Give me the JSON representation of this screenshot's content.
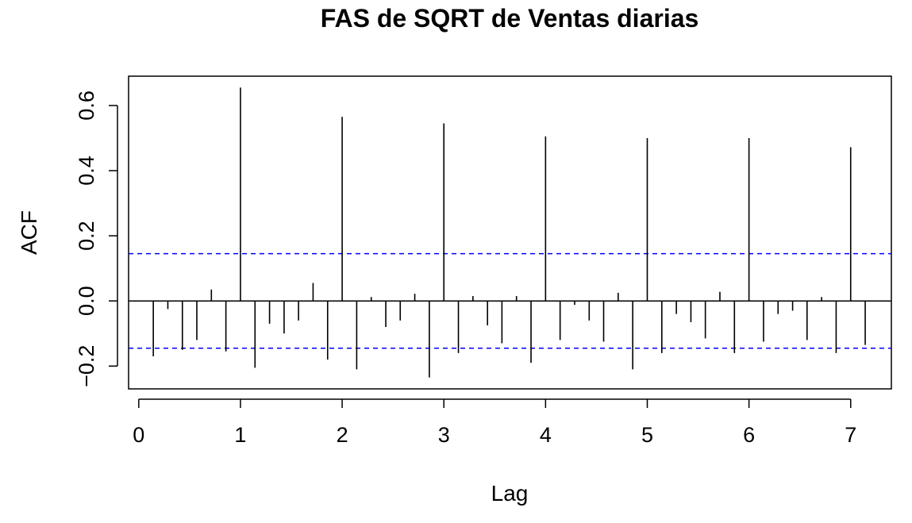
{
  "chart_data": {
    "type": "bar",
    "title": "FAS de SQRT de Ventas diarias",
    "xlabel": "Lag",
    "ylabel": "ACF",
    "xlim": [
      -0.1,
      7.4
    ],
    "ylim": [
      -0.27,
      0.69
    ],
    "x_ticks": [
      0,
      1,
      2,
      3,
      4,
      5,
      6,
      7
    ],
    "y_ticks": [
      -0.2,
      0.0,
      0.2,
      0.4,
      0.6
    ],
    "x_tick_labels": [
      "0",
      "1",
      "2",
      "3",
      "4",
      "5",
      "6",
      "7"
    ],
    "y_tick_labels": [
      "−0.2",
      "0.0",
      "0.2",
      "0.4",
      "0.6"
    ],
    "confidence_bound": 0.145,
    "grid": false,
    "colors": {
      "spikes": "#000000",
      "bounds": "#0000ff",
      "zero_line": "#000000"
    },
    "lags": [
      0.143,
      0.286,
      0.429,
      0.571,
      0.714,
      0.857,
      1.0,
      1.143,
      1.286,
      1.429,
      1.571,
      1.714,
      1.857,
      2.0,
      2.143,
      2.286,
      2.429,
      2.571,
      2.714,
      2.857,
      3.0,
      3.143,
      3.286,
      3.429,
      3.571,
      3.714,
      3.857,
      4.0,
      4.143,
      4.286,
      4.429,
      4.571,
      4.714,
      4.857,
      5.0,
      5.143,
      5.286,
      5.429,
      5.571,
      5.714,
      5.857,
      6.0,
      6.143,
      6.286,
      6.429,
      6.571,
      6.714,
      6.857,
      7.0,
      7.143
    ],
    "values": [
      -0.17,
      -0.025,
      -0.15,
      -0.12,
      0.035,
      -0.155,
      0.655,
      -0.205,
      -0.07,
      -0.1,
      -0.06,
      0.055,
      -0.18,
      0.565,
      -0.21,
      0.012,
      -0.08,
      -0.06,
      0.022,
      -0.235,
      0.545,
      -0.16,
      0.015,
      -0.075,
      -0.13,
      0.015,
      -0.19,
      0.505,
      -0.12,
      -0.012,
      -0.06,
      -0.125,
      0.025,
      -0.21,
      0.5,
      -0.16,
      -0.04,
      -0.065,
      -0.115,
      0.028,
      -0.16,
      0.5,
      -0.125,
      -0.04,
      -0.03,
      -0.12,
      0.012,
      -0.16,
      0.472,
      -0.135
    ]
  }
}
